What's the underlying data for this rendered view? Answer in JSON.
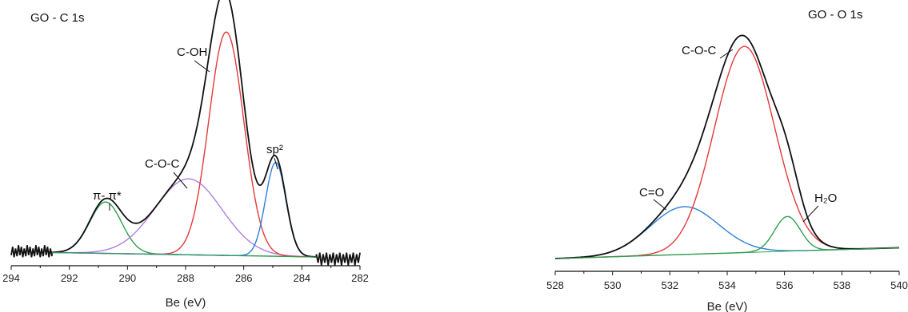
{
  "chart_data": [
    {
      "type": "line",
      "title": "GO - C 1s",
      "xlabel": "Be (eV)",
      "ylabel": "",
      "x_reversed": true,
      "xlim": [
        294,
        282
      ],
      "xticks": [
        "294",
        "292",
        "290",
        "288",
        "286",
        "284",
        "282"
      ],
      "grid": false,
      "y_axis_shown": false,
      "baseline": {
        "start": 292.6,
        "end": 283.5,
        "y_start": 0.02,
        "y_end": 0.0
      },
      "noise": {
        "left_range": [
          294,
          292.6
        ],
        "right_range": [
          283.5,
          282
        ]
      },
      "series": [
        {
          "color": "#111111",
          "role": "envelope"
        },
        {
          "color": "#2e9e4f",
          "center": 290.75,
          "amplitude": 0.23,
          "sigma": 0.55
        },
        {
          "color": "#b07fe0",
          "center": 287.9,
          "amplitude": 0.34,
          "sigma": 1.15
        },
        {
          "color": "#e23a3a",
          "center": 286.6,
          "amplitude": 1.0,
          "sigma": 0.6
        },
        {
          "color": "#2f7fd6",
          "center": 284.9,
          "amplitude": 0.42,
          "sigma": 0.35
        }
      ],
      "annotations": [
        {
          "text": "C-OH",
          "at_x": 286.6
        },
        {
          "text": "C-O-C",
          "at_x": 287.9
        },
        {
          "text": "sp²",
          "at_x": 284.95
        },
        {
          "text": "π- π*",
          "at_x": 290.75
        }
      ]
    },
    {
      "type": "line",
      "title": "GO - O 1s",
      "xlabel": "Be (eV)",
      "ylabel": "",
      "x_reversed": false,
      "xlim": [
        528,
        540
      ],
      "xticks": [
        "528",
        "530",
        "532",
        "534",
        "536",
        "538",
        "540"
      ],
      "grid": false,
      "y_axis_shown": false,
      "baseline": {
        "start": 528,
        "end": 540,
        "y_start": 0.0,
        "y_end": 0.05
      },
      "series": [
        {
          "color": "#111111",
          "role": "envelope"
        },
        {
          "color": "#2f7fd6",
          "center": 532.5,
          "amplitude": 0.22,
          "sigma": 1.2
        },
        {
          "color": "#e23a3a",
          "center": 534.6,
          "amplitude": 0.95,
          "sigma": 1.05
        },
        {
          "color": "#2e9e4f",
          "center": 536.1,
          "amplitude": 0.16,
          "sigma": 0.45
        }
      ],
      "annotations": [
        {
          "text": "C-O-C",
          "at_x": 534.55
        },
        {
          "text": "C=O",
          "at_x": 532.6
        },
        {
          "text": "H₂O",
          "at_x": 536.2
        }
      ]
    }
  ]
}
